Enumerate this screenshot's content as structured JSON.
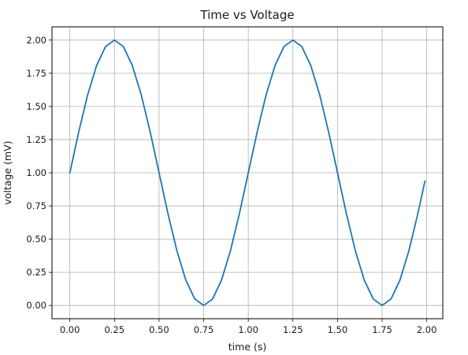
{
  "chart_data": {
    "type": "line",
    "title": "Time vs Voltage",
    "xlabel": "time (s)",
    "ylabel": "voltage (mV)",
    "xlim": [
      -0.1,
      2.09
    ],
    "ylim": [
      -0.1,
      2.1
    ],
    "grid": true,
    "x_ticks": [
      0.0,
      0.25,
      0.5,
      0.75,
      1.0,
      1.25,
      1.5,
      1.75,
      2.0
    ],
    "y_ticks": [
      0.0,
      0.25,
      0.5,
      0.75,
      1.0,
      1.25,
      1.5,
      1.75,
      2.0
    ],
    "x_tick_labels": [
      "0.00",
      "0.25",
      "0.50",
      "0.75",
      "1.00",
      "1.25",
      "1.50",
      "1.75",
      "2.00"
    ],
    "y_tick_labels": [
      "0.00",
      "0.25",
      "0.50",
      "0.75",
      "1.00",
      "1.25",
      "1.50",
      "1.75",
      "2.00"
    ],
    "series": [
      {
        "color": "#1f77b4",
        "x": [
          0.0,
          0.05,
          0.1,
          0.15,
          0.2,
          0.25,
          0.3,
          0.35,
          0.4,
          0.45,
          0.5,
          0.55,
          0.6,
          0.65,
          0.7,
          0.75,
          0.8,
          0.85,
          0.9,
          0.95,
          1.0,
          1.05,
          1.1,
          1.15,
          1.2,
          1.25,
          1.3,
          1.35,
          1.4,
          1.45,
          1.5,
          1.55,
          1.6,
          1.65,
          1.7,
          1.75,
          1.8,
          1.85,
          1.9,
          1.95,
          1.99
        ],
        "y": [
          1.0,
          1.309,
          1.588,
          1.809,
          1.951,
          2.0,
          1.951,
          1.809,
          1.588,
          1.309,
          1.0,
          0.691,
          0.412,
          0.191,
          0.049,
          0.0,
          0.049,
          0.191,
          0.412,
          0.691,
          1.0,
          1.309,
          1.588,
          1.809,
          1.951,
          2.0,
          1.951,
          1.809,
          1.588,
          1.309,
          1.0,
          0.691,
          0.412,
          0.191,
          0.049,
          0.0,
          0.049,
          0.191,
          0.412,
          0.691,
          0.937
        ]
      }
    ]
  }
}
